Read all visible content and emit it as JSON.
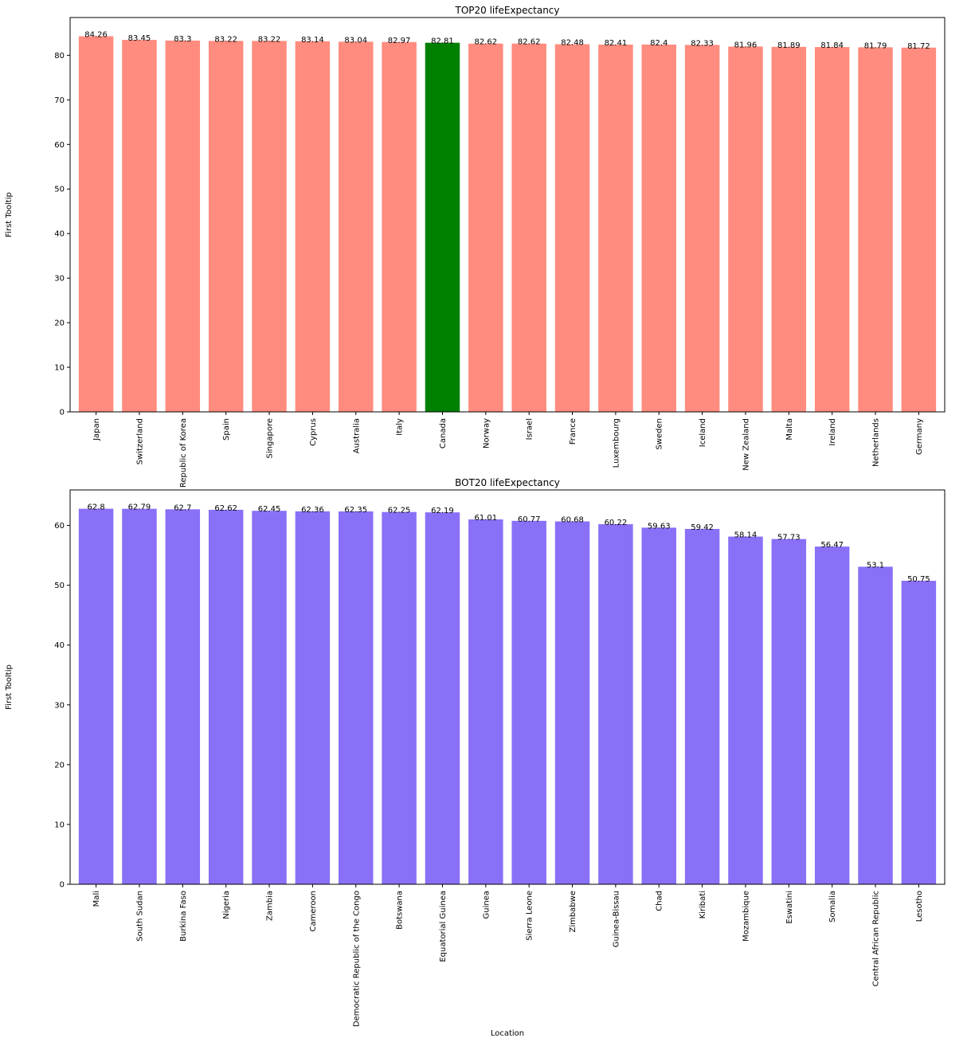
{
  "chart_data": [
    {
      "type": "bar",
      "title": "TOP20 lifeExpectancy",
      "xlabel": "",
      "ylabel": "First Tooltip",
      "ylim": [
        0,
        88.47
      ],
      "yticks": [
        0,
        10,
        20,
        30,
        40,
        50,
        60,
        70,
        80
      ],
      "default_color": "#ff8c7e",
      "highlight_color": "#008000",
      "highlight_index": 8,
      "categories": [
        "Japan",
        "Switzerland",
        "Republic of Korea",
        "Spain",
        "Singapore",
        "Cyprus",
        "Australia",
        "Italy",
        "Canada",
        "Norway",
        "Israel",
        "France",
        "Luxembourg",
        "Sweden",
        "Iceland",
        "New Zealand",
        "Malta",
        "Ireland",
        "Netherlands",
        "Germany"
      ],
      "values": [
        84.26,
        83.45,
        83.3,
        83.22,
        83.22,
        83.14,
        83.04,
        82.97,
        82.81,
        82.62,
        82.62,
        82.48,
        82.41,
        82.4,
        82.33,
        81.96,
        81.89,
        81.84,
        81.79,
        81.72
      ],
      "grid": false,
      "legend": "none"
    },
    {
      "type": "bar",
      "title": "BOT20 lifeExpectancy",
      "xlabel": "Location",
      "ylabel": "First Tooltip",
      "ylim": [
        0,
        65.94
      ],
      "yticks": [
        0,
        10,
        20,
        30,
        40,
        50,
        60
      ],
      "default_color": "#8a70f7",
      "highlight_color": "#8a70f7",
      "highlight_index": -1,
      "categories": [
        "Mali",
        "South Sudan",
        "Burkina Faso",
        "Nigeria",
        "Zambia",
        "Cameroon",
        "Democratic Republic of the Congo",
        "Botswana",
        "Equatorial Guinea",
        "Guinea",
        "Sierra Leone",
        "Zimbabwe",
        "Guinea-Bissau",
        "Chad",
        "Kiribati",
        "Mozambique",
        "Eswatini",
        "Somalia",
        "Central African Republic",
        "Lesotho"
      ],
      "values": [
        62.8,
        62.79,
        62.7,
        62.62,
        62.45,
        62.36,
        62.35,
        62.25,
        62.19,
        61.01,
        60.77,
        60.68,
        60.22,
        59.63,
        59.42,
        58.14,
        57.73,
        56.47,
        53.1,
        50.75
      ],
      "grid": false,
      "legend": "none"
    }
  ]
}
